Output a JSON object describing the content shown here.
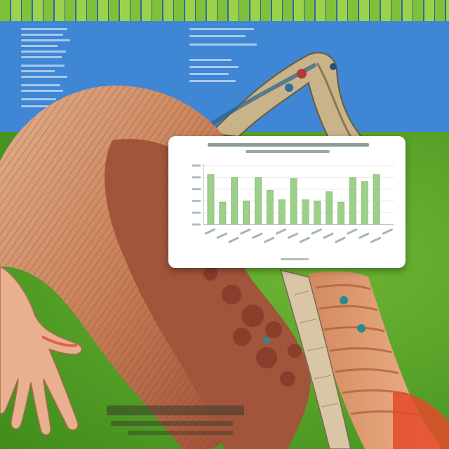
{
  "scene": {
    "background_colors": {
      "sky": "#3f86d4",
      "field": "#5aa42a",
      "stripe": "#7fc23a"
    },
    "subject": "anatomical-arm-illustration",
    "muscle_colors": {
      "light": "#d9a27e",
      "mid": "#c0774f",
      "dark": "#8c3f2a"
    }
  },
  "chart_data": {
    "type": "bar",
    "categories": [
      "",
      "",
      "",
      "",
      "",
      "",
      "",
      "",
      "",
      "",
      "",
      "",
      "",
      "",
      "",
      ""
    ],
    "values": [
      0.85,
      0.38,
      0.8,
      0.4,
      0.8,
      0.58,
      0.42,
      0.78,
      0.42,
      0.4,
      0.56,
      0.38,
      0.8,
      0.73,
      0.85,
      0.0
    ],
    "ylim": [
      0,
      1
    ],
    "grid": true,
    "bar_color": "#9ccf8a"
  }
}
